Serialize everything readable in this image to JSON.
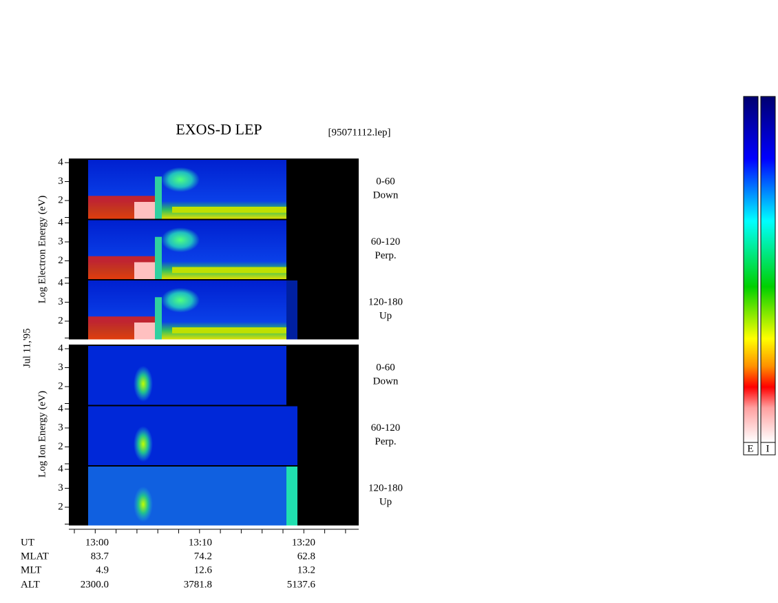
{
  "header": {
    "title": "EXOS-D LEP",
    "file": "[95071112.lep]"
  },
  "date": "Jul 11,'95",
  "electron": {
    "axis_label": "Log Electron Energy (eV)",
    "panels": [
      {
        "label": "0-60",
        "direction": "Down",
        "ticks": [
          "4",
          "3",
          "2"
        ]
      },
      {
        "label": "60-120",
        "direction": "Perp.",
        "ticks": [
          "4",
          "3",
          "2"
        ]
      },
      {
        "label": "120-180",
        "direction": "Up",
        "ticks": [
          "4",
          "3",
          "2"
        ]
      }
    ]
  },
  "ion": {
    "axis_label": "Log Ion Energy (eV)",
    "panels": [
      {
        "label": "0-60",
        "direction": "Down",
        "ticks": [
          "4",
          "3",
          "2"
        ]
      },
      {
        "label": "60-120",
        "direction": "Perp.",
        "ticks": [
          "4",
          "3",
          "2"
        ]
      },
      {
        "label": "120-180",
        "direction": "Up",
        "ticks": [
          "4",
          "3",
          "2"
        ]
      }
    ]
  },
  "time_axis": {
    "rows": [
      {
        "label": "UT",
        "values": [
          "13:00",
          "13:10",
          "13:20"
        ]
      },
      {
        "label": "MLAT",
        "values": [
          "83.7",
          "74.2",
          "62.8"
        ]
      },
      {
        "label": "MLT",
        "values": [
          "4.9",
          "12.6",
          "13.2"
        ]
      },
      {
        "label": "ALT",
        "values": [
          "2300.0",
          "3781.8",
          "5137.6"
        ]
      }
    ]
  },
  "colorbars": [
    "E",
    "I"
  ]
}
